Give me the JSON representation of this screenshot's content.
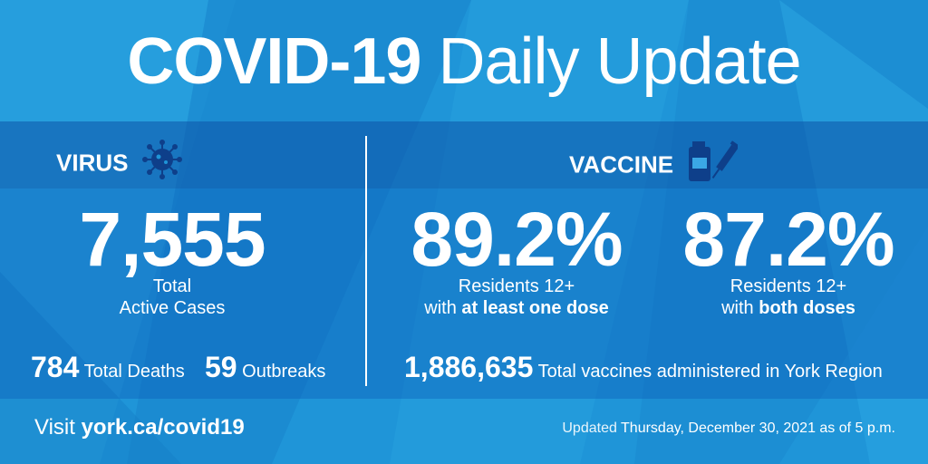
{
  "title": {
    "bold": "COVID-19",
    "rest": "Daily Update"
  },
  "virus": {
    "heading": "VIRUS",
    "icon": "virus-icon",
    "active_cases": "7,555",
    "active_label_line1": "Total",
    "active_label_line2": "Active Cases",
    "deaths_value": "784",
    "deaths_label": "Total Deaths",
    "outbreaks_value": "59",
    "outbreaks_label": "Outbreaks"
  },
  "vaccine": {
    "heading": "VACCINE",
    "icon": "vaccine-icon",
    "one_dose_pct": "89.2%",
    "one_dose_line1": "Residents 12+",
    "one_dose_line2_prefix": "with",
    "one_dose_line2_bold": "at least one dose",
    "both_doses_pct": "87.2%",
    "both_doses_line1": "Residents 12+",
    "both_doses_line2_prefix": "with",
    "both_doses_line2_bold": "both doses",
    "total_administered": "1,886,635",
    "total_label": "Total vaccines administered in York Region"
  },
  "footer": {
    "visit_label": "Visit",
    "url": "york.ca/covid19",
    "updated_label": "Updated",
    "updated_date": "Thursday, December 30, 2021 as of 5 p.m."
  },
  "colors": {
    "background": "#1e93d6",
    "band": "#0c54a8",
    "icon_fill": "#0e3f8a",
    "text": "#ffffff"
  }
}
